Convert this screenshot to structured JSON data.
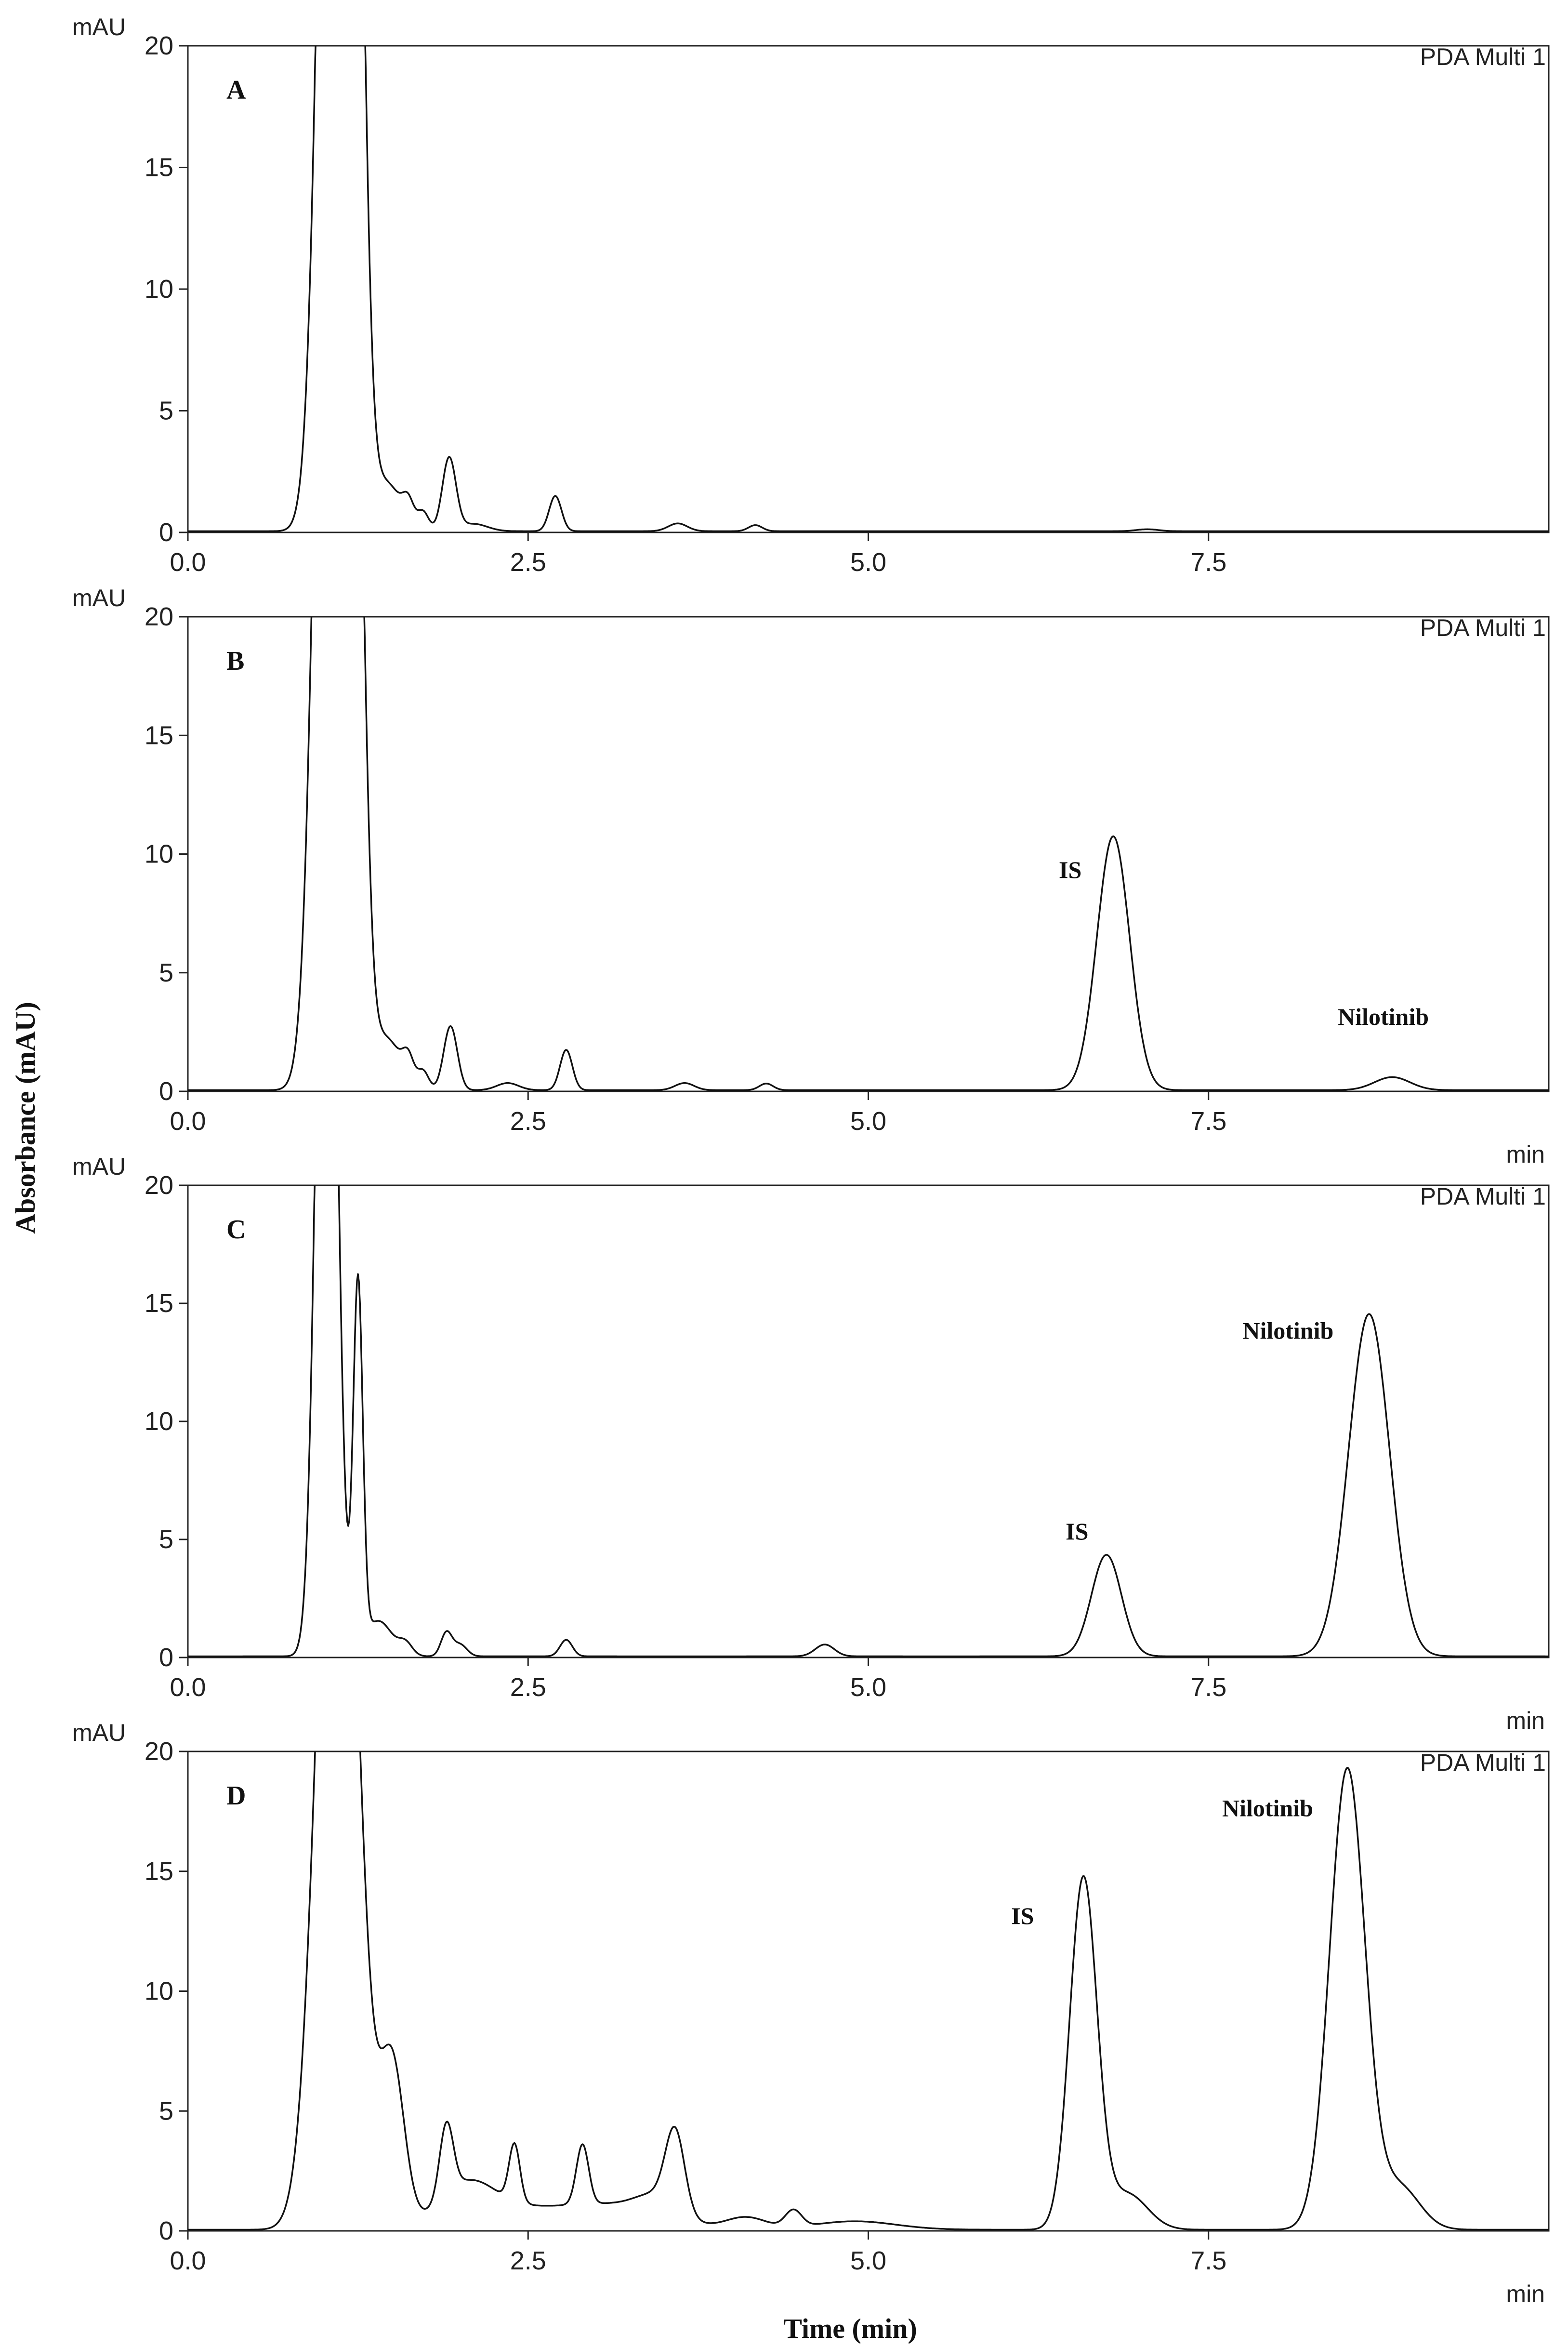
{
  "chart_data": [
    {
      "type": "line",
      "panel": "A",
      "channel": "PDA Multi 1",
      "ylabel_unit": "mAU",
      "xlabel_unit": "",
      "ylim": [
        0,
        20
      ],
      "xlim": [
        0,
        10
      ],
      "yticks": [
        "0",
        "5",
        "10",
        "15",
        "20"
      ],
      "xticks": [
        "0.0",
        "2.5",
        "5.0",
        "7.5"
      ],
      "baseline": 0.05,
      "peaks": [
        {
          "x": 1.08,
          "h": 55,
          "w": 0.1
        },
        {
          "x": 1.22,
          "h": 30,
          "w": 0.07
        },
        {
          "x": 1.45,
          "h": 2.0,
          "w": 0.12
        },
        {
          "x": 1.62,
          "h": 0.8,
          "w": 0.04
        },
        {
          "x": 1.73,
          "h": 0.7,
          "w": 0.04
        },
        {
          "x": 1.92,
          "h": 3.0,
          "w": 0.05
        },
        {
          "x": 2.1,
          "h": 0.3,
          "w": 0.1
        },
        {
          "x": 2.7,
          "h": 1.45,
          "w": 0.045
        },
        {
          "x": 3.6,
          "h": 0.32,
          "w": 0.07
        },
        {
          "x": 4.17,
          "h": 0.25,
          "w": 0.05
        },
        {
          "x": 7.05,
          "h": 0.08,
          "w": 0.08
        }
      ],
      "annotations": []
    },
    {
      "type": "line",
      "panel": "B",
      "channel": "PDA Multi 1",
      "ylabel_unit": "mAU",
      "xlabel_unit": "min",
      "ylim": [
        0,
        20
      ],
      "xlim": [
        0,
        10
      ],
      "yticks": [
        "0",
        "5",
        "10",
        "15",
        "20"
      ],
      "xticks": [
        "0.0",
        "2.5",
        "5.0",
        "7.5"
      ],
      "baseline": 0.05,
      "peaks": [
        {
          "x": 1.05,
          "h": 55,
          "w": 0.1
        },
        {
          "x": 1.22,
          "h": 30,
          "w": 0.07
        },
        {
          "x": 1.45,
          "h": 2.2,
          "w": 0.12
        },
        {
          "x": 1.62,
          "h": 0.9,
          "w": 0.04
        },
        {
          "x": 1.73,
          "h": 0.7,
          "w": 0.04
        },
        {
          "x": 1.93,
          "h": 2.7,
          "w": 0.05
        },
        {
          "x": 2.35,
          "h": 0.3,
          "w": 0.08
        },
        {
          "x": 2.78,
          "h": 1.7,
          "w": 0.045
        },
        {
          "x": 3.65,
          "h": 0.3,
          "w": 0.07
        },
        {
          "x": 4.25,
          "h": 0.28,
          "w": 0.05
        },
        {
          "x": 6.8,
          "h": 10.7,
          "w": 0.12
        },
        {
          "x": 8.85,
          "h": 0.55,
          "w": 0.13
        }
      ],
      "annotations": [
        {
          "text": "IS",
          "x": 6.4,
          "y": 9.0
        },
        {
          "text": "Nilotinib",
          "x": 8.45,
          "y": 2.8
        }
      ]
    },
    {
      "type": "line",
      "panel": "C",
      "channel": "PDA Multi 1",
      "ylabel_unit": "mAU",
      "xlabel_unit": "min",
      "ylim": [
        0,
        20
      ],
      "xlim": [
        0,
        10
      ],
      "yticks": [
        "0",
        "5",
        "10",
        "15",
        "20"
      ],
      "xticks": [
        "0.0",
        "2.5",
        "5.0",
        "7.5"
      ],
      "baseline": 0.05,
      "peaks": [
        {
          "x": 1.02,
          "h": 45,
          "w": 0.07
        },
        {
          "x": 1.25,
          "h": 15.5,
          "w": 0.035
        },
        {
          "x": 1.4,
          "h": 1.5,
          "w": 0.1
        },
        {
          "x": 1.6,
          "h": 0.5,
          "w": 0.05
        },
        {
          "x": 1.9,
          "h": 1.0,
          "w": 0.04
        },
        {
          "x": 2.0,
          "h": 0.5,
          "w": 0.05
        },
        {
          "x": 2.78,
          "h": 0.7,
          "w": 0.045
        },
        {
          "x": 4.68,
          "h": 0.5,
          "w": 0.07
        },
        {
          "x": 6.75,
          "h": 4.3,
          "w": 0.11
        },
        {
          "x": 8.68,
          "h": 14.5,
          "w": 0.15
        }
      ],
      "annotations": [
        {
          "text": "IS",
          "x": 6.45,
          "y": 5.0
        },
        {
          "text": "Nilotinib",
          "x": 7.75,
          "y": 13.5
        }
      ]
    },
    {
      "type": "line",
      "panel": "D",
      "channel": "PDA Multi 1",
      "ylabel_unit": "mAU",
      "xlabel_unit": "min",
      "ylim": [
        0,
        20
      ],
      "xlim": [
        0,
        10
      ],
      "yticks": [
        "0",
        "5",
        "10",
        "15",
        "20"
      ],
      "xticks": [
        "0.0",
        "2.5",
        "5.0",
        "7.5"
      ],
      "baseline": 0.05,
      "peaks": [
        {
          "x": 1.1,
          "h": 40,
          "w": 0.14
        },
        {
          "x": 1.5,
          "h": 6.8,
          "w": 0.09
        },
        {
          "x": 1.9,
          "h": 3.0,
          "w": 0.05
        },
        {
          "x": 2.05,
          "h": 1.5,
          "w": 0.2
        },
        {
          "x": 2.4,
          "h": 2.4,
          "w": 0.04
        },
        {
          "x": 2.4,
          "h": 0.8,
          "w": 0.4
        },
        {
          "x": 2.9,
          "h": 2.5,
          "w": 0.045
        },
        {
          "x": 3.15,
          "h": 0.9,
          "w": 0.35
        },
        {
          "x": 3.58,
          "h": 3.3,
          "w": 0.07
        },
        {
          "x": 3.45,
          "h": 0.8,
          "w": 0.15
        },
        {
          "x": 4.1,
          "h": 0.5,
          "w": 0.15
        },
        {
          "x": 4.45,
          "h": 0.7,
          "w": 0.06
        },
        {
          "x": 4.9,
          "h": 0.35,
          "w": 0.3
        },
        {
          "x": 6.58,
          "h": 14.6,
          "w": 0.1
        },
        {
          "x": 6.9,
          "h": 1.5,
          "w": 0.15
        },
        {
          "x": 8.52,
          "h": 19.2,
          "w": 0.13
        },
        {
          "x": 8.9,
          "h": 1.8,
          "w": 0.15
        }
      ],
      "annotations": [
        {
          "text": "IS",
          "x": 6.05,
          "y": 12.8
        },
        {
          "text": "Nilotinib",
          "x": 7.6,
          "y": 17.3
        }
      ]
    }
  ],
  "figure": {
    "ylabel": "Absorbance (mAU)",
    "xlabel": "Time (min)"
  }
}
